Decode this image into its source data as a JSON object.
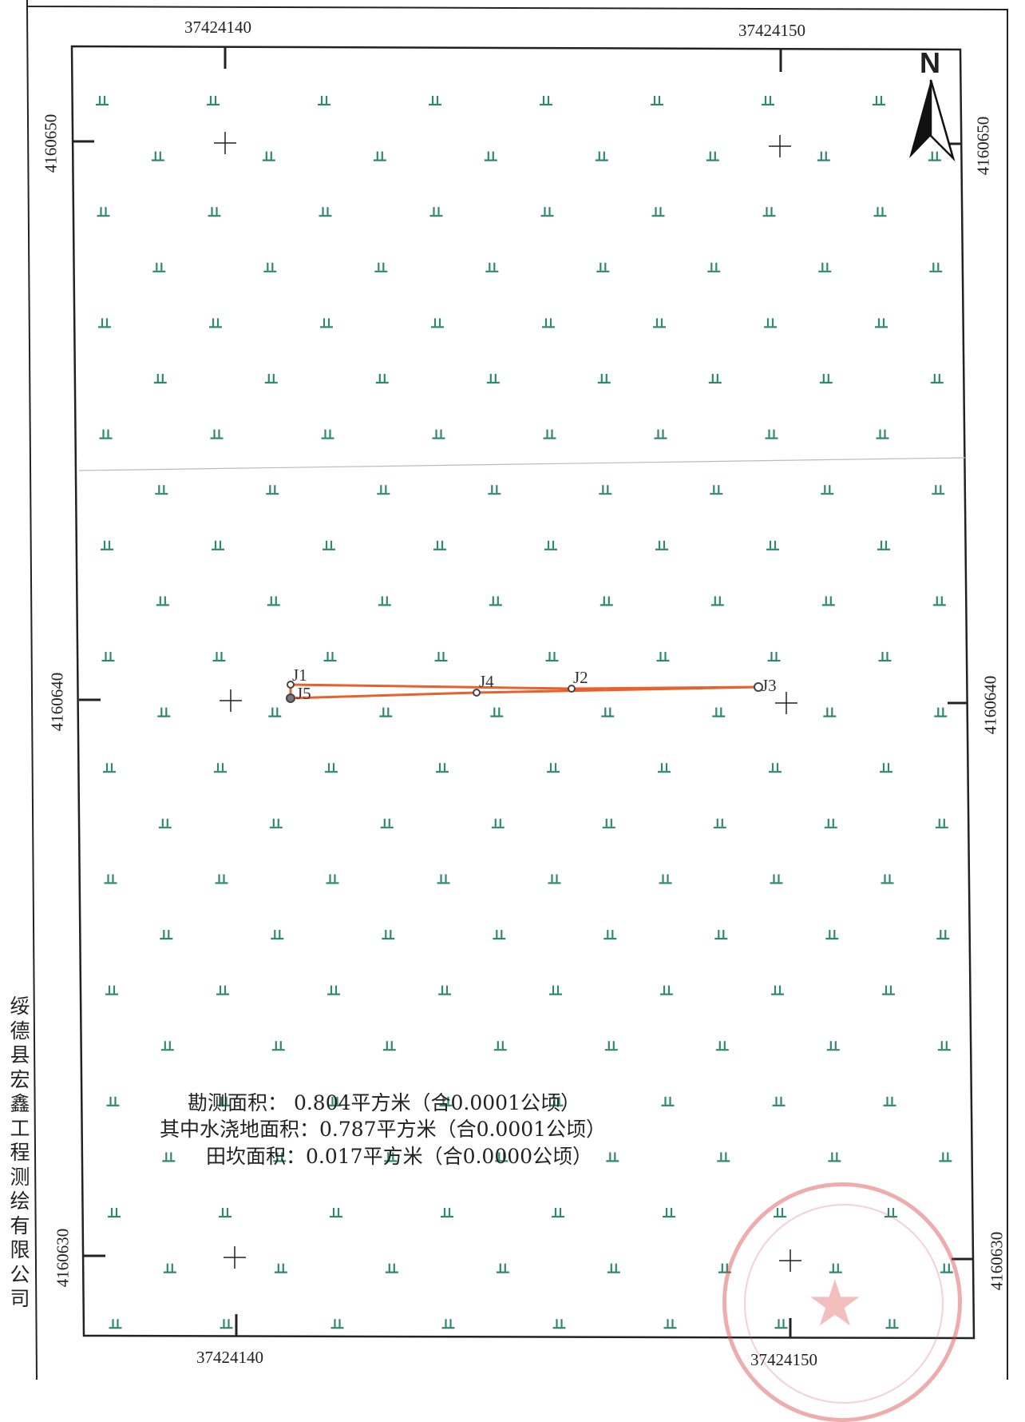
{
  "company_vertical": "绥德县宏鑫工程测绘有限公司",
  "top_x_labels": [
    "37424140",
    "37424150"
  ],
  "bottom_x_labels": [
    "37424140",
    "37424150"
  ],
  "left_y_labels": [
    "4160650",
    "4160640",
    "4160630"
  ],
  "right_y_labels": [
    "4160650",
    "4160640",
    "4160630"
  ],
  "north_label": "N",
  "points": [
    {
      "id": "J1",
      "label": "J1"
    },
    {
      "id": "J2",
      "label": "J2"
    },
    {
      "id": "J3",
      "label": "J3"
    },
    {
      "id": "J4",
      "label": "J4"
    },
    {
      "id": "J5",
      "label": "J5"
    }
  ],
  "area_lines": [
    "勘测面积： 0.804平方米（合0.0001公顷）",
    "其中水浇地面积：0.787平方米（合0.0001公顷）",
    "田坎面积：0.017平方米（合0.0000公顷）"
  ],
  "colors": {
    "parcel_outline": "#e8602c",
    "vegetation_symbol": "#2f8a6a",
    "stamp": "#e05050"
  },
  "icons": [
    "north-arrow-icon",
    "grass-symbol-icon",
    "crosshair-icon",
    "official-stamp-icon"
  ]
}
